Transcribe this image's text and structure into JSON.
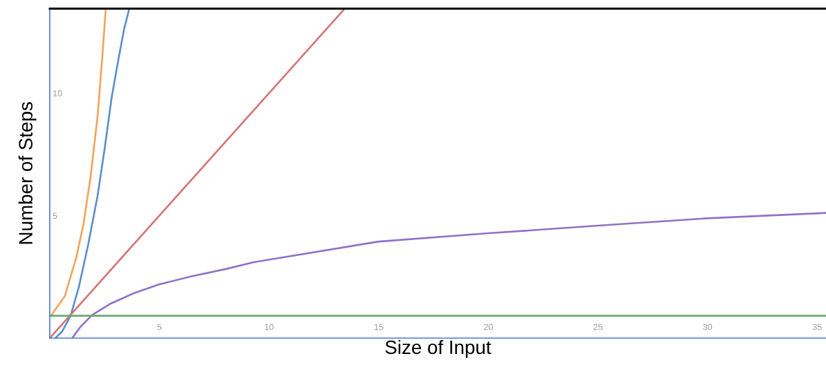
{
  "chart_data": {
    "type": "line",
    "xlabel": "Size of Input",
    "ylabel": "Number of Steps",
    "xlim": [
      0,
      35.4
    ],
    "ylim": [
      0,
      13.45
    ],
    "xticks": [
      5,
      10,
      15,
      20,
      25,
      30,
      35
    ],
    "yticks": [
      5,
      10
    ],
    "grid": false,
    "legend": false,
    "marker": "none",
    "line_style": "solid",
    "series": [
      {
        "color": "#f4a35a",
        "x": [
          0.05,
          0.69,
          1.22,
          1.54,
          1.86,
          2.18,
          2.39,
          2.55
        ],
        "values": [
          0.91,
          1.72,
          3.33,
          4.67,
          6.57,
          9.05,
          11.4,
          13.4
        ]
      },
      {
        "color": "#5b8fc9",
        "x": [
          0.26,
          0.58,
          0.95,
          1.33,
          1.75,
          2.18,
          2.5,
          2.82,
          3.14,
          3.4,
          3.62
        ],
        "values": [
          0,
          0.29,
          0.91,
          2.1,
          3.81,
          5.81,
          7.71,
          9.81,
          11.42,
          12.66,
          13.42
        ]
      },
      {
        "color": "#d47572",
        "x": [
          0,
          13.4
        ],
        "values": [
          0,
          13.4
        ]
      },
      {
        "color": "#8e72c6",
        "x": [
          1.04,
          1.41,
          1.93,
          2.78,
          3.83,
          4.98,
          6.46,
          8.03,
          9.3,
          15,
          20,
          25,
          30,
          35.4
        ],
        "values": [
          0.02,
          0.47,
          0.94,
          1.41,
          1.83,
          2.19,
          2.52,
          2.82,
          3.1,
          3.94,
          4.28,
          4.59,
          4.89,
          5.11
        ]
      },
      {
        "color": "#6aaa6e",
        "x": [
          0,
          35.4
        ],
        "values": [
          0.91,
          0.91
        ]
      }
    ]
  }
}
